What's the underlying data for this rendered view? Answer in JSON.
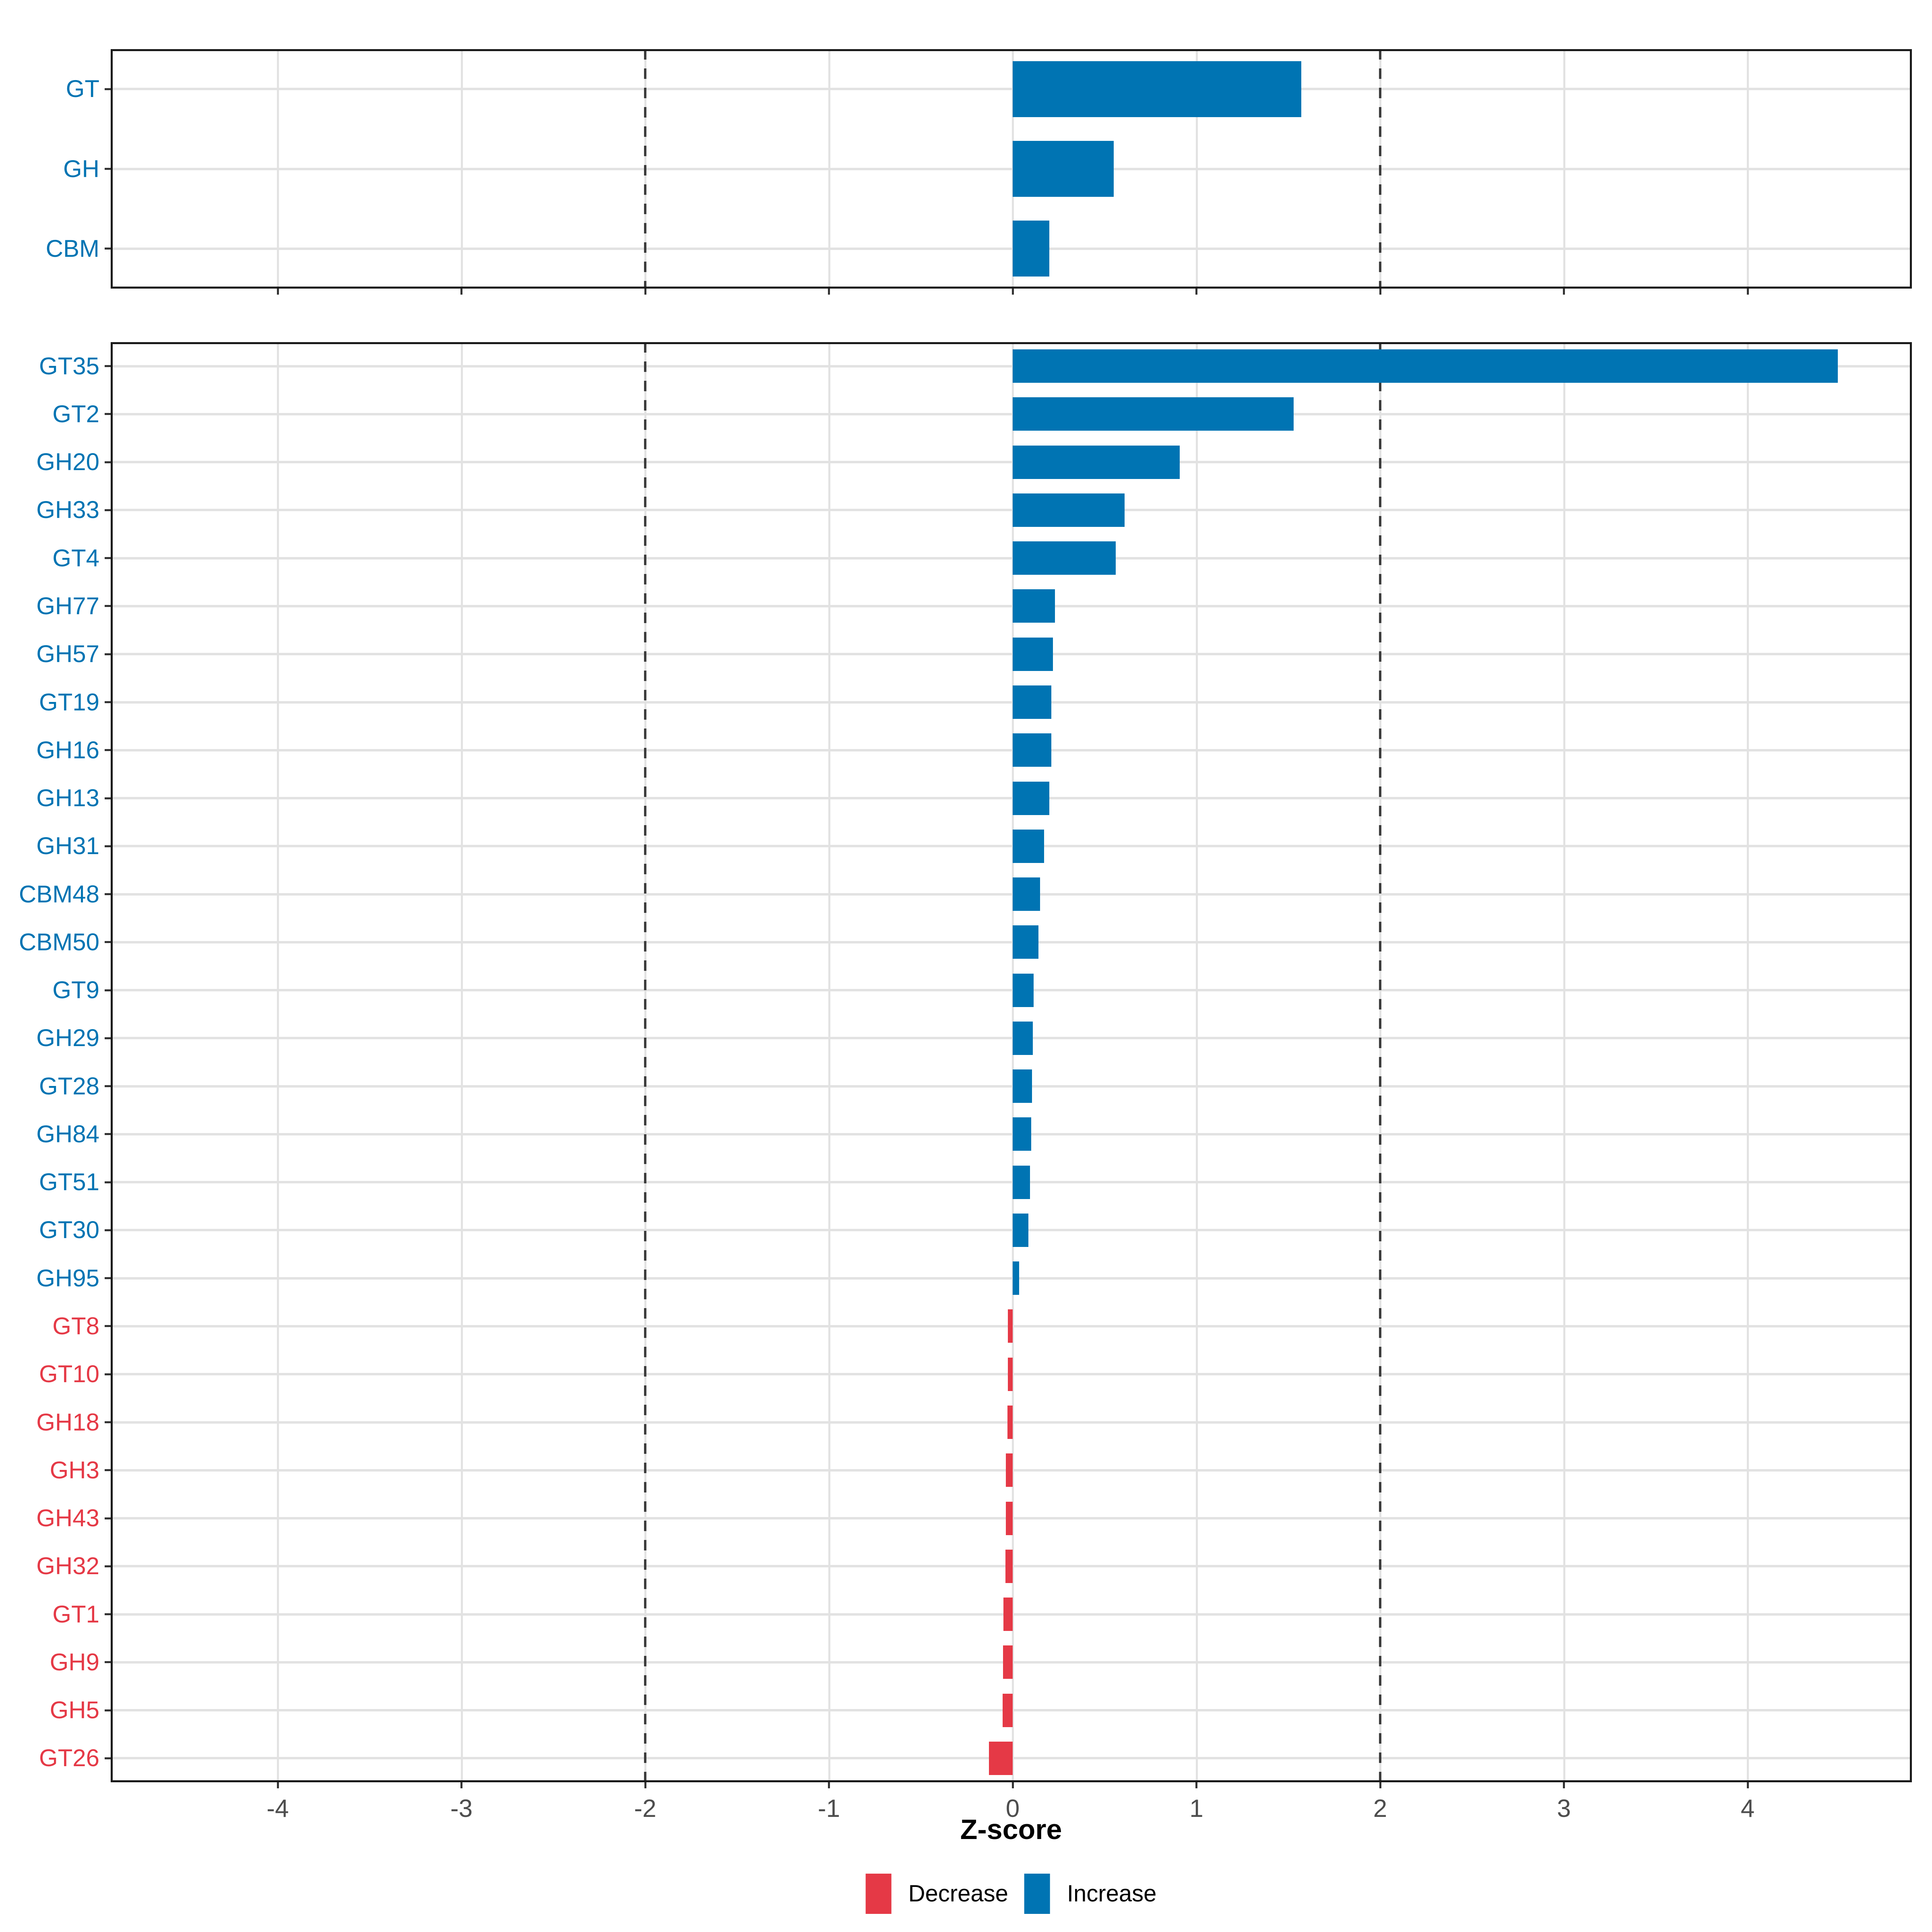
{
  "figure_type": "horizontal bar chart, two stacked panels sharing one x axis",
  "axis": {
    "x_label": "Z-score",
    "x_ticks": [
      -4,
      -3,
      -2,
      -1,
      0,
      1,
      2,
      3,
      4
    ],
    "x_tick_labels": [
      "-4",
      "-3",
      "-2",
      "-1",
      "0",
      "1",
      "2",
      "3",
      "4"
    ],
    "x_range": [
      -4.91,
      4.89
    ],
    "reference_lines": [
      -2,
      2
    ],
    "grid": "major gridlines only, light gray; dashed dark vertical lines at -2 and 2"
  },
  "colors": {
    "increase": "#0074B3",
    "decrease": "#E53946",
    "grid": "#E2E2E2",
    "axis_text": "#4D4D4D",
    "dashed_line": "#3D3D3D",
    "panel_border": "#1A1A1A"
  },
  "legend": {
    "position": "bottom center",
    "items": [
      {
        "label": "Decrease",
        "color_key": "decrease"
      },
      {
        "label": "Increase",
        "color_key": "increase"
      }
    ]
  },
  "chart_data": [
    {
      "type": "bar",
      "orientation": "horizontal",
      "panel": "summary-classes",
      "categories": [
        "GT",
        "GH",
        "CBM"
      ],
      "values": [
        1.57,
        0.55,
        0.2
      ],
      "direction": [
        "Increase",
        "Increase",
        "Increase"
      ],
      "xlabel": "Z-score",
      "xlim": [
        -4.91,
        4.89
      ],
      "legend_position": "bottom"
    },
    {
      "type": "bar",
      "orientation": "horizontal",
      "panel": "families",
      "categories": [
        "GT35",
        "GT2",
        "GH20",
        "GH33",
        "GT4",
        "GH77",
        "GH57",
        "GT19",
        "GH16",
        "GH13",
        "GH31",
        "CBM48",
        "CBM50",
        "GT9",
        "GH29",
        "GT28",
        "GH84",
        "GT51",
        "GT30",
        "GH95",
        "GT8",
        "GT10",
        "GH18",
        "GH3",
        "GH43",
        "GH32",
        "GT1",
        "GH9",
        "GH5",
        "GT26"
      ],
      "values": [
        4.49,
        1.53,
        0.91,
        0.61,
        0.56,
        0.23,
        0.22,
        0.21,
        0.21,
        0.2,
        0.17,
        0.15,
        0.14,
        0.115,
        0.11,
        0.105,
        0.1,
        0.095,
        0.085,
        0.035,
        -0.026,
        -0.027,
        -0.029,
        -0.037,
        -0.038,
        -0.04,
        -0.051,
        -0.053,
        -0.055,
        -0.13
      ],
      "direction": [
        "Increase",
        "Increase",
        "Increase",
        "Increase",
        "Increase",
        "Increase",
        "Increase",
        "Increase",
        "Increase",
        "Increase",
        "Increase",
        "Increase",
        "Increase",
        "Increase",
        "Increase",
        "Increase",
        "Increase",
        "Increase",
        "Increase",
        "Increase",
        "Decrease",
        "Decrease",
        "Decrease",
        "Decrease",
        "Decrease",
        "Decrease",
        "Decrease",
        "Decrease",
        "Decrease",
        "Decrease"
      ],
      "xlabel": "Z-score",
      "xlim": [
        -4.91,
        4.89
      ],
      "legend_position": "bottom"
    }
  ]
}
